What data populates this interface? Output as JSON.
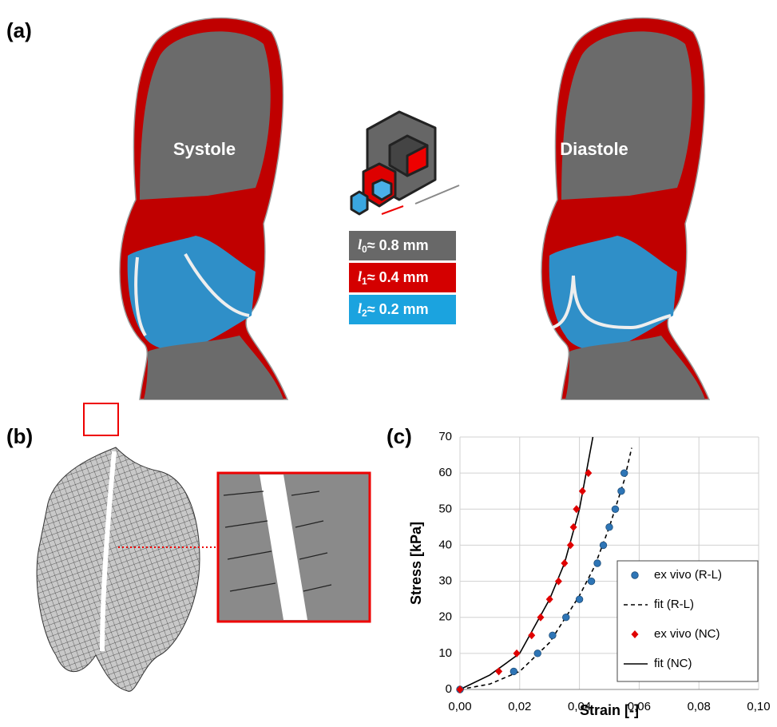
{
  "panel_labels": [
    "(a)",
    "(b)",
    "(c)"
  ],
  "panel_a": {
    "labels": [
      "Systole",
      "Diastole"
    ],
    "scale_boxes": [
      {
        "symbol": "l",
        "subscript": "0",
        "text": "≈ 0.8 mm",
        "color": "#686868"
      },
      {
        "symbol": "l",
        "subscript": "1",
        "text": "≈ 0.4 mm",
        "color": "#d40000"
      },
      {
        "symbol": "l",
        "subscript": "2",
        "text": "≈ 0.2 mm",
        "color": "#1ba3df"
      }
    ]
  },
  "chart_data": {
    "type": "scatter",
    "x_label": "Strain [-]",
    "y_label": "Stress [kPa]",
    "xlim": [
      0,
      0.1
    ],
    "xticks": [
      {
        "value": 0,
        "label": "0,00"
      },
      {
        "value": 0.02,
        "label": "0,02"
      },
      {
        "value": 0.04,
        "label": "0,04"
      },
      {
        "value": 0.06,
        "label": "0,06"
      },
      {
        "value": 0.08,
        "label": "0,08"
      },
      {
        "value": 0.1,
        "label": "0,10"
      }
    ],
    "ylim": [
      0,
      70
    ],
    "yticks": [
      0,
      10,
      20,
      30,
      40,
      50,
      60,
      70
    ],
    "grid": true,
    "legend": "lower-right",
    "series": [
      {
        "name": "ex vivo (R-L)",
        "mode": "markers",
        "marker": "circle",
        "color": "#2e75b6",
        "x": [
          0,
          0.018,
          0.026,
          0.031,
          0.0355,
          0.04,
          0.044,
          0.046,
          0.048,
          0.05,
          0.052,
          0.054,
          0.055
        ],
        "values": [
          0,
          5,
          10,
          15,
          20,
          25,
          30,
          35,
          40,
          45,
          50,
          55,
          60
        ]
      },
      {
        "name": "fit (R-L)",
        "mode": "line",
        "dash": true,
        "color": "#000000",
        "x": [
          0,
          0.01,
          0.02,
          0.03,
          0.04,
          0.045,
          0.05,
          0.055,
          0.0575
        ],
        "values": [
          0,
          1.5,
          5,
          13,
          26,
          34,
          45,
          58,
          67
        ]
      },
      {
        "name": "ex vivo (NC)",
        "mode": "markers",
        "marker": "diamond",
        "color": "#e00000",
        "x": [
          0,
          0.013,
          0.019,
          0.024,
          0.027,
          0.03,
          0.033,
          0.035,
          0.037,
          0.038,
          0.039,
          0.041,
          0.043
        ],
        "values": [
          0,
          5,
          10,
          15,
          20,
          25,
          30,
          35,
          40,
          45,
          50,
          55,
          60
        ]
      },
      {
        "name": "fit (NC)",
        "mode": "line",
        "dash": false,
        "color": "#000000",
        "x": [
          0,
          0.01,
          0.02,
          0.03,
          0.035,
          0.04,
          0.0445
        ],
        "values": [
          0,
          4,
          10,
          25,
          35,
          50,
          70
        ]
      }
    ]
  }
}
